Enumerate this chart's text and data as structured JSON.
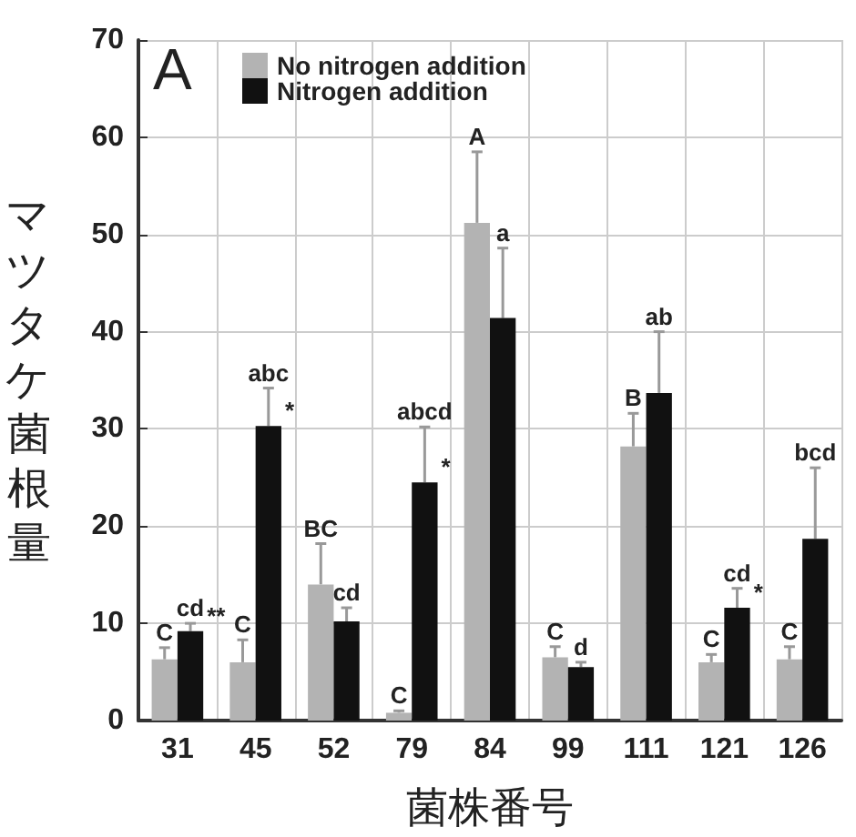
{
  "chart_data": {
    "type": "bar",
    "xlabel": "菌株番号",
    "ylabel": "マツタケ菌根量",
    "categories": [
      "31",
      "45",
      "52",
      "79",
      "84",
      "99",
      "111",
      "121",
      "126"
    ],
    "series": [
      {
        "name": "No nitrogen addition",
        "color": "#b3b3b3",
        "values": [
          6.3,
          6,
          14,
          0.8,
          51.2,
          6.5,
          28.2,
          6,
          6.3
        ],
        "errors": [
          [
            6.3,
            7.5
          ],
          [
            6,
            8.3
          ],
          [
            14,
            18.2
          ],
          [
            0.8,
            1
          ],
          [
            51.2,
            58.5
          ],
          [
            6.5,
            7.6
          ],
          [
            28.2,
            31.6
          ],
          [
            6,
            6.8
          ],
          [
            6.3,
            7.6
          ]
        ]
      },
      {
        "name": "Nitrogen addition",
        "color": "#111111",
        "values": [
          9.2,
          30.3,
          10.2,
          24.5,
          41.4,
          5.5,
          33.7,
          11.6,
          18.7
        ],
        "errors": [
          [
            9.2,
            10
          ],
          [
            30.3,
            34.2
          ],
          [
            10.2,
            11.6
          ],
          [
            24.5,
            30.2
          ],
          [
            41.4,
            48.6
          ],
          [
            5.5,
            6
          ],
          [
            33.7,
            40
          ],
          [
            11.6,
            13.6
          ],
          [
            18.7,
            26
          ]
        ]
      }
    ],
    "ylim": [
      0,
      70
    ],
    "yticks": [
      0,
      10,
      20,
      30,
      40,
      50,
      60,
      70
    ],
    "grid": true,
    "legend": "top left",
    "annotations": [
      "A",
      {
        "text": "C",
        "x": "31",
        "y": 7.5
      },
      {
        "text": "cd",
        "x": "31",
        "y": 10
      },
      {
        "text": "C",
        "x": "45",
        "y": 8.3
      },
      {
        "text": "abc",
        "x": "45",
        "y": 34.2
      },
      {
        "text": "BC",
        "x": "52",
        "y": 18.2
      },
      {
        "text": "cd",
        "x": "52",
        "y": 11.6
      },
      {
        "text": "C",
        "x": "79",
        "y": 1
      },
      {
        "text": "abcd",
        "x": "79",
        "y": 30.2
      },
      {
        "text": "A",
        "x": "84",
        "y": 58.5
      },
      {
        "text": "a",
        "x": "84",
        "y": 48.6
      },
      {
        "text": "C",
        "x": "99",
        "y": 7.6
      },
      {
        "text": "d",
        "x": "99",
        "y": 6
      },
      {
        "text": "B",
        "x": "111",
        "y": 31.6
      },
      {
        "text": "ab",
        "x": "111",
        "y": 40
      },
      {
        "text": "C",
        "x": "121",
        "y": 6.8
      },
      {
        "text": "cd",
        "x": "121",
        "y": 13.6
      },
      {
        "text": "C",
        "x": "126",
        "y": 7.6
      },
      {
        "text": "bcd",
        "x": "126",
        "y": 26
      },
      {
        "text": "**",
        "x": "31",
        "y": 9.2
      },
      {
        "text": "*",
        "x": "45",
        "y": 30.3
      },
      {
        "text": "*",
        "x": "79",
        "y": 24.5
      },
      {
        "text": "*",
        "x": "121",
        "y": 11.6
      }
    ]
  }
}
